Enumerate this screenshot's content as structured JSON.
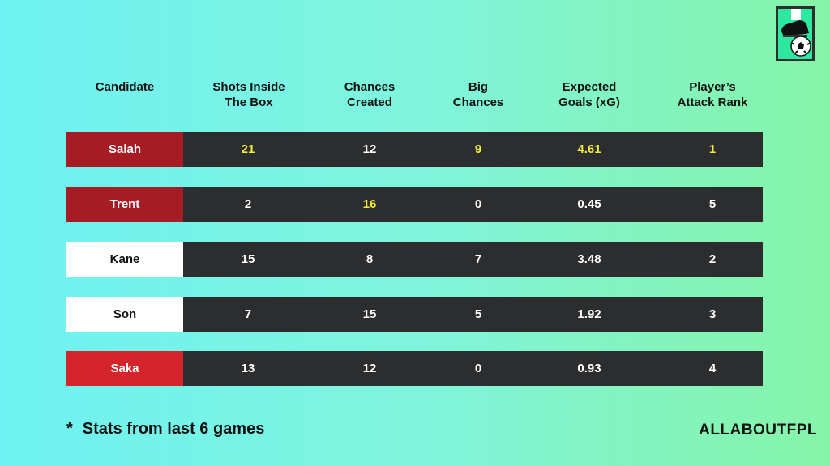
{
  "headers": [
    "Candidate",
    "Shots Inside\nThe Box",
    "Chances\nCreated",
    "Big\nChances",
    "Expected\nGoals (xG)",
    "Player’s\nAttack Rank"
  ],
  "rows": [
    {
      "name": "Salah",
      "name_bg": "#a61c24",
      "name_color": "#ffffff",
      "values": [
        "21",
        "12",
        "9",
        "4.61",
        "1"
      ],
      "highlight": [
        true,
        false,
        true,
        true,
        true
      ]
    },
    {
      "name": "Trent",
      "name_bg": "#a61c24",
      "name_color": "#ffffff",
      "values": [
        "2",
        "16",
        "0",
        "0.45",
        "5"
      ],
      "highlight": [
        false,
        true,
        false,
        false,
        false
      ]
    },
    {
      "name": "Kane",
      "name_bg": "#ffffff",
      "name_color": "#111111",
      "values": [
        "15",
        "8",
        "7",
        "3.48",
        "2"
      ],
      "highlight": [
        false,
        false,
        false,
        false,
        false
      ]
    },
    {
      "name": "Son",
      "name_bg": "#ffffff",
      "name_color": "#111111",
      "values": [
        "7",
        "15",
        "5",
        "1.92",
        "3"
      ],
      "highlight": [
        false,
        false,
        false,
        false,
        false
      ]
    },
    {
      "name": "Saka",
      "name_bg": "#d4232a",
      "name_color": "#ffffff",
      "values": [
        "13",
        "12",
        "0",
        "0.93",
        "4"
      ],
      "highlight": [
        false,
        false,
        false,
        false,
        false
      ]
    }
  ],
  "footnote": {
    "star": "*",
    "text": "Stats from last 6 games"
  },
  "brand": "ALLABOUTFPL",
  "colors": {
    "highlight": "#f4ee3a",
    "stats_bg": "#2b2d2f"
  },
  "logo": {
    "icon": "boot-and-ball-icon"
  }
}
